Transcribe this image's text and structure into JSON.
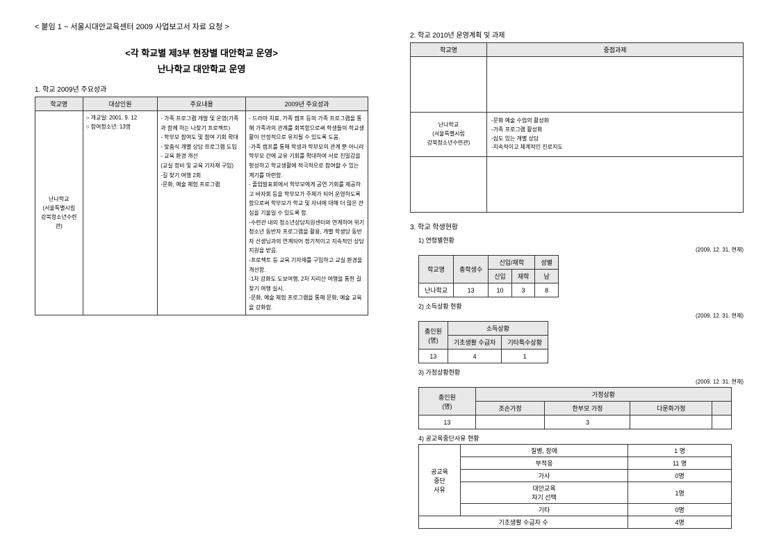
{
  "header": "< 붙임 1 − 서울시대안교육센터 2009 사업보고서 자료 요청 >",
  "title1": "<각 학교별 제3부 현장별 대안학교 운영>",
  "title2": "난나학교   대안학교 운영",
  "sec1": {
    "label": "1. 학교 2009년 주요성과",
    "headers": [
      "학교명",
      "대상인원",
      "주요내용",
      "2009년 주요성과"
    ],
    "school": "난나학교\n(서울특별시립\n강북청소년수련관)",
    "target": "○ 개교일: 2001. 9. 12\n○ 참여청소년: 13명",
    "content": "- 가족 프로그램 개발 및 운영(가족과 함께 하는 나찾기 프로젝트)\n- 학부모 참여도 및 참여 기회 확대\n- 맞춤식 개별 상담 프로그램 도입\n- 교육 환경 개선\n(교실 정비 및 교육 기자재 구입)\n-길 찾기 여행 2회\n-문화, 예술 체험 프로그램",
    "result": "- 드라마 치료, 가족 캠프 등의 가족 프로그램을 통해 가족과의 관계를 회복함으로써 학생들의 학교생활이 안정적으로 유지될 수 있도록 도움.\n-가족 캠프를 통해 학생과 학부모의 관계 뿐 아니라 학부모 간에 교유 기회를 확대하여 서로 친밀감을 형성하고 학교생활에 적극적으로 참여할 수 있는 계기를 마련함.\n- 졸업발표회에서 학부모에게 공연 기회를 제공하고 바자회 등을 학부모가 주체가 되어 운영하도록 함으로써 학부모가 학교 및 자녀에 대해 더 많은 관심을 기울일 수 있도록 함.\n-수련관 내의 청소년상담지원센터와 연계하여 위기 청소년 동반자 프로그램을 활용, 개별 학생당 동반자 선생님과의 연계되어 정기적이고 지속적인 상담 지원을 받음.\n-프로젝트 등 교육 기자재를 구입하고 교실 환경을 개선함.\n-1차 강화도 도보여행, 2차 지리산 여행을 통한 길 찾기 여행 실시.\n-문화, 예술 체험 프로그램을 통해 문화, 예술 교육을 강화함."
  },
  "sec2": {
    "label": "2. 학교 2010년 운영계획 및 과제",
    "headers": [
      "학교명",
      "중점과제"
    ],
    "school": "난나학교\n(서울특별시립\n강북청소년수련관)",
    "tasks": "-문화 예술 수업의 활성화\n-가족 프로그램 활성화\n-심도 있는 개별 상담\n-지속적이고 체계적인 진로지도"
  },
  "sec3": {
    "label": "3.   학교 학생현황",
    "s31": {
      "label": "1) 연령별현황",
      "date": "(2009. 12. 31. 현재)",
      "h": [
        "학교명",
        "총학생수",
        "신입/재학",
        "성별"
      ],
      "h2": [
        "신입",
        "재학",
        "남"
      ],
      "row": [
        "난나학교",
        "13",
        "10",
        "3",
        "8"
      ]
    },
    "s32": {
      "label": "2) 소득상황 현황",
      "date": "(2009. 12. 31. 현재)",
      "h": [
        "총인원\n(명)",
        "소득상황"
      ],
      "h2": [
        "기초생활 수급자",
        "기타특수상황"
      ],
      "row": [
        "13",
        "4",
        "1"
      ]
    },
    "s33": {
      "label": "3) 가정상황현황",
      "date": "(2009. 12. 31. 현재)",
      "h": [
        "총인원\n(명)",
        "가정상황"
      ],
      "h2": [
        "조손가정",
        "한부모 가정",
        "다문화가정"
      ],
      "row": [
        "13",
        "",
        "3",
        ""
      ]
    },
    "s34": {
      "label": "4) 공교육중단사유 현황",
      "rowsLeft": "공교육\n중단\n사유",
      "rows": [
        [
          "질병, 장애",
          "1 명"
        ],
        [
          "부적응",
          "11 명"
        ],
        [
          "가사",
          "0명"
        ],
        [
          "대안교육\n자기 선택",
          "1명"
        ],
        [
          "기타",
          "0명"
        ]
      ],
      "footer": [
        "기초생활 수급자 수",
        "4명"
      ]
    }
  }
}
